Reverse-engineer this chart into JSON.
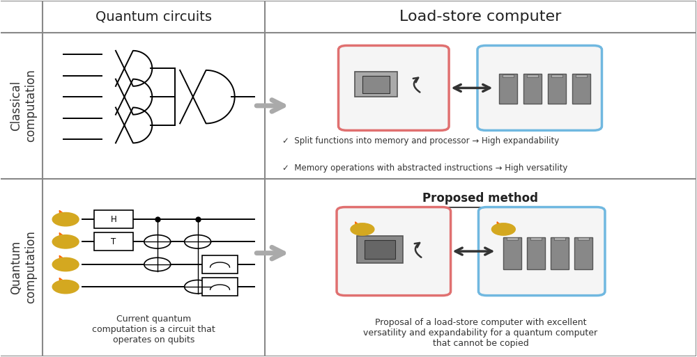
{
  "fig_width": 10.0,
  "fig_height": 5.13,
  "dpi": 100,
  "bg_color": "#ffffff",
  "col_split": 0.38,
  "row_split": 0.52,
  "header_col1": "Quantum circuits",
  "header_col2": "Load-store computer",
  "row1_label": "Classical\ncomputation",
  "row2_label": "Quantum\ncomputation",
  "proposed_method_title": "Proposed method",
  "bullet1": "✓  Split functions into memory and processor → High expandability",
  "bullet2": "✓  Memory operations with abstracted instructions → High versatility",
  "caption_bottom_left": "Current quantum\ncomputation is a circuit that\noperates on qubits",
  "caption_bottom_right": "Proposal of a load-store computer with excellent\nversatility and expandability for a quantum computer\nthat cannot be copied",
  "processor_box_color_top": "#e07070",
  "memory_box_color_top": "#70b8e0",
  "processor_box_color_bot": "#e07070",
  "memory_box_color_bot": "#70b8e0",
  "arrow_color": "#555555",
  "grid_color": "#888888",
  "text_color": "#333333"
}
